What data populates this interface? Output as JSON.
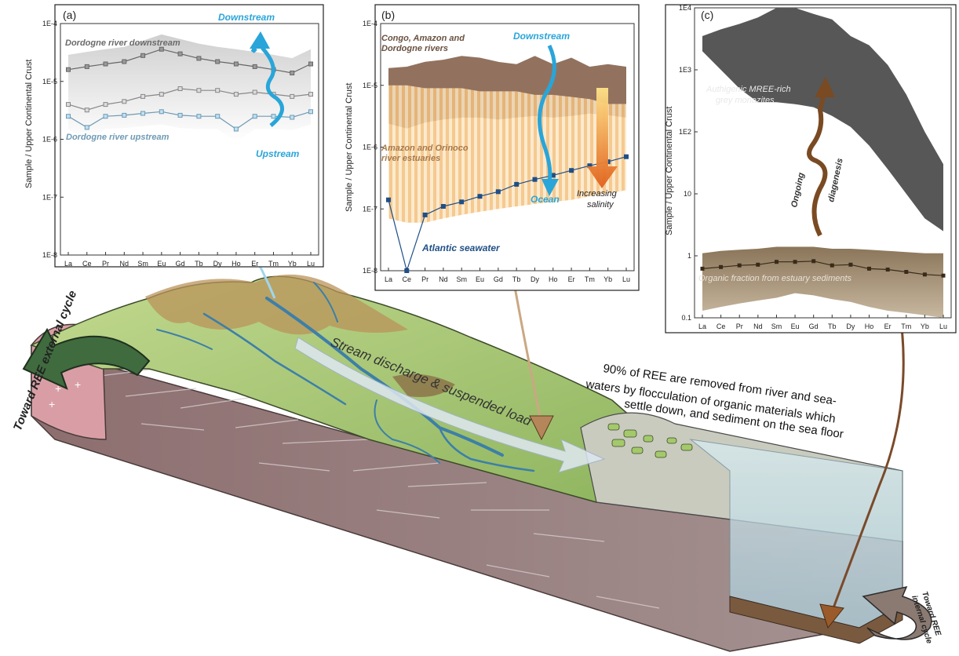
{
  "colors": {
    "land_green": "#a9c879",
    "land_dark_green": "#7fa353",
    "brown_relief": "#a07a45",
    "crust_mauve": "#8c6b70",
    "water_blue": "#2aa6d9",
    "seawater_navy": "#1f4f86",
    "river_band_brown": "#8c6a55",
    "estuary_band_orange": "#f5c98a",
    "monazite_grey": "#555555",
    "organic_brown": "#8a7559",
    "sea_surface": "#c9e6ef"
  },
  "panel_a": {
    "label": "(a)",
    "ylabel": "Sample / Upper Continental Crust",
    "ytick_labels": [
      "1E-4",
      "1E-5",
      "1E-6",
      "1E-7",
      "1E-8"
    ],
    "xtick_labels": [
      "La",
      "Ce",
      "Pr",
      "Nd",
      "Sm",
      "Eu",
      "Gd",
      "Tb",
      "Dy",
      "Ho",
      "Er",
      "Tm",
      "Yb",
      "Lu"
    ],
    "ann_downstream_river": "Dordogne river downstream",
    "ann_upstream_river": "Dordogne river upstream",
    "ann_downstream": "Downstream",
    "ann_upstream": "Upstream"
  },
  "panel_b": {
    "label": "(b)",
    "ylabel": "Sample / Upper Continental Crust",
    "ytick_labels": [
      "1E-4",
      "1E-5",
      "1E-6",
      "1E-7",
      "1E-8"
    ],
    "xtick_labels": [
      "La",
      "Ce",
      "Pr",
      "Nd",
      "Sm",
      "Eu",
      "Gd",
      "Tb",
      "Dy",
      "Ho",
      "Er",
      "Tm",
      "Yb",
      "Lu"
    ],
    "ann_rivers_line1": "Congo, Amazon and",
    "ann_rivers_line2": "Dordogne rivers",
    "ann_estuaries_line1": "Amazon and Orinoco",
    "ann_estuaries_line2": "river estuaries",
    "ann_downstream": "Downstream",
    "ann_ocean": "Ocean",
    "ann_salinity_line1": "Increasing",
    "ann_salinity_line2": "salinity",
    "ann_seawater": "Atlantic seawater"
  },
  "panel_c": {
    "label": "(c)",
    "ylabel": "Sample / Upper Continental Crust",
    "ytick_labels": [
      "1E4",
      "1E3",
      "1E2",
      "10",
      "1",
      "0.1"
    ],
    "xtick_labels": [
      "La",
      "Ce",
      "Pr",
      "Nd",
      "Sm",
      "Eu",
      "Gd",
      "Tb",
      "Dy",
      "Ho",
      "Er",
      "Tm",
      "Yb",
      "Lu"
    ],
    "ann_monazite_line1": "Authigenic MREE-rich",
    "ann_monazite_line2": "grey monazites",
    "ann_diag1": "Ongoing",
    "ann_diag2": "diagenesis",
    "ann_organic": "Organic fraction from estuary sediments"
  },
  "landscape": {
    "label_external": "Toward REE external cycle",
    "label_internal_1": "Toward REE",
    "label_internal_2": "internal cycle",
    "label_stream": "Stream discharge & suspended load",
    "flocc_lines": [
      "90% of REE are removed from river and sea-",
      "waters by flocculation of organic materials which",
      "settle down, and sediment on the sea floor"
    ]
  },
  "chart_data": [
    {
      "type": "line",
      "title": "(a)",
      "ylabel": "Sample / Upper Continental Crust",
      "yscale": "log",
      "ylim": [
        1e-08,
        0.0001
      ],
      "categories": [
        "La",
        "Ce",
        "Pr",
        "Nd",
        "Sm",
        "Eu",
        "Gd",
        "Tb",
        "Dy",
        "Ho",
        "Er",
        "Tm",
        "Yb",
        "Lu"
      ],
      "series": [
        {
          "name": "Dordogne river downstream",
          "values": [
            1.6e-05,
            1.8e-05,
            2e-05,
            2.2e-05,
            2.8e-05,
            3.6e-05,
            3e-05,
            2.5e-05,
            2.2e-05,
            2e-05,
            1.8e-05,
            1.6e-05,
            1.4e-05,
            2e-05
          ]
        },
        {
          "values": [
            4e-06,
            3.2e-06,
            4e-06,
            4.5e-06,
            5.5e-06,
            6e-06,
            7.5e-06,
            7e-06,
            7e-06,
            6e-06,
            6.5e-06,
            6e-06,
            5.5e-06,
            6e-06
          ]
        },
        {
          "name": "Dordogne river upstream",
          "values": [
            2.5e-06,
            1.6e-06,
            2.5e-06,
            2.6e-06,
            2.8e-06,
            3e-06,
            2.6e-06,
            2.5e-06,
            2.5e-06,
            1.5e-06,
            2.5e-06,
            2.5e-06,
            2.4e-06,
            3e-06
          ]
        }
      ]
    },
    {
      "type": "line",
      "title": "(b)",
      "ylabel": "Sample / Upper Continental Crust",
      "yscale": "log",
      "ylim": [
        1e-08,
        0.0001
      ],
      "categories": [
        "La",
        "Ce",
        "Pr",
        "Nd",
        "Sm",
        "Eu",
        "Gd",
        "Tb",
        "Dy",
        "Ho",
        "Er",
        "Tm",
        "Yb",
        "Lu"
      ],
      "series": [
        {
          "name": "Atlantic seawater",
          "values": [
            1.4e-07,
            1e-08,
            8e-08,
            1.1e-07,
            1.3e-07,
            1.6e-07,
            1.9e-07,
            2.5e-07,
            3e-07,
            3.5e-07,
            4.2e-07,
            5e-07,
            5.8e-07,
            7e-07
          ]
        },
        {
          "name": "Congo, Amazon and Dordogne rivers",
          "type": "band",
          "upper": [
            1.9e-05,
            2e-05,
            2.4e-05,
            2.6e-05,
            3e-05,
            2.8e-05,
            2.4e-05,
            2.2e-05,
            3e-05,
            2.2e-05,
            2.8e-05,
            2e-05,
            2.2e-05,
            2e-05
          ],
          "lower": [
            2.4e-06,
            2e-06,
            2.5e-06,
            2.8e-06,
            3e-06,
            3e-06,
            2.8e-06,
            3e-06,
            3.2e-06,
            3e-06,
            3.2e-06,
            3.5e-06,
            3.3e-06,
            3e-06
          ]
        },
        {
          "name": "Amazon and Orinoco river estuaries",
          "type": "band",
          "upper": [
            1e-05,
            1e-05,
            9e-06,
            9e-06,
            9e-06,
            8e-06,
            8e-06,
            8e-06,
            7e-06,
            7e-06,
            6.5e-06,
            6e-06,
            5e-06,
            5e-06
          ],
          "lower": [
            7e-08,
            6e-08,
            6e-08,
            7e-08,
            8e-08,
            9e-08,
            1e-07,
            1.1e-07,
            1.2e-07,
            1.3e-07,
            1.4e-07,
            1.6e-07,
            1.8e-07,
            2e-07
          ]
        }
      ]
    },
    {
      "type": "line",
      "title": "(c)",
      "ylabel": "Sample / Upper Continental Crust",
      "yscale": "log",
      "ylim": [
        0.1,
        10000
      ],
      "categories": [
        "La",
        "Ce",
        "Pr",
        "Nd",
        "Sm",
        "Eu",
        "Gd",
        "Tb",
        "Dy",
        "Ho",
        "Er",
        "Tm",
        "Yb",
        "Lu"
      ],
      "series": [
        {
          "name": "Organic fraction from estuary sediments",
          "values": [
            0.62,
            0.66,
            0.7,
            0.72,
            0.8,
            0.8,
            0.82,
            0.7,
            0.72,
            0.62,
            0.6,
            0.55,
            0.5,
            0.48
          ]
        },
        {
          "name": "Organic fraction from estuary sediments",
          "type": "band",
          "upper": [
            1.1,
            1.2,
            1.25,
            1.3,
            1.4,
            1.4,
            1.4,
            1.3,
            1.3,
            1.25,
            1.2,
            1.15,
            1.1,
            1.1
          ],
          "lower": [
            0.13,
            0.15,
            0.17,
            0.19,
            0.21,
            0.25,
            0.23,
            0.2,
            0.18,
            0.15,
            0.13,
            0.12,
            0.11,
            0.1
          ]
        },
        {
          "name": "Authigenic MREE-rich grey monazites",
          "type": "band",
          "upper": [
            3500,
            4500,
            5500,
            7000,
            10000,
            10000,
            8000,
            6500,
            3500,
            2500,
            1200,
            400,
            100,
            30
          ],
          "lower": [
            2000,
            1000,
            500,
            300,
            300,
            280,
            250,
            180,
            120,
            60,
            25,
            10,
            4,
            2.5
          ]
        }
      ]
    }
  ]
}
